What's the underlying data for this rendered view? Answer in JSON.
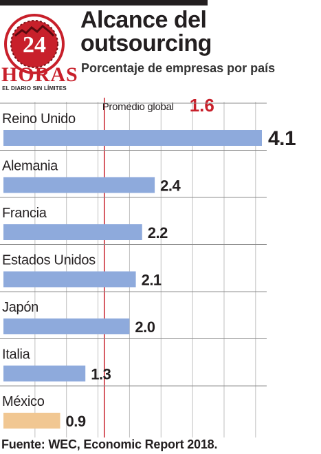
{
  "publisher": {
    "logo_number": "24",
    "logo_word": "HORAS",
    "tagline": "EL DIARIO SIN LÍMITES"
  },
  "chart_data": {
    "type": "bar",
    "orientation": "horizontal",
    "title": "Alcance del outsourcing",
    "subtitle": "Porcentaje de empresas por país",
    "categories": [
      "Reino Unido",
      "Alemania",
      "Francia",
      "Estados Unidos",
      "Japón",
      "Italia",
      "México"
    ],
    "values": [
      4.1,
      2.4,
      2.2,
      2.1,
      2.0,
      1.3,
      0.9
    ],
    "value_labels": [
      "4.1",
      "2.4",
      "2.2",
      "2.1",
      "2.0",
      "1.3",
      "0.9"
    ],
    "xlim": [
      0,
      4.1
    ],
    "grid": true,
    "reference_line": {
      "label": "Promedio global",
      "value": 1.6,
      "value_label": "1.6"
    },
    "highlight_category": "México",
    "colors": {
      "bar": "#8eaadc",
      "highlight": "#f1c792",
      "reference": "#c8202b",
      "grid": "#bfbfbf"
    }
  },
  "source": "Fuente: WEC, Economic Report 2018."
}
